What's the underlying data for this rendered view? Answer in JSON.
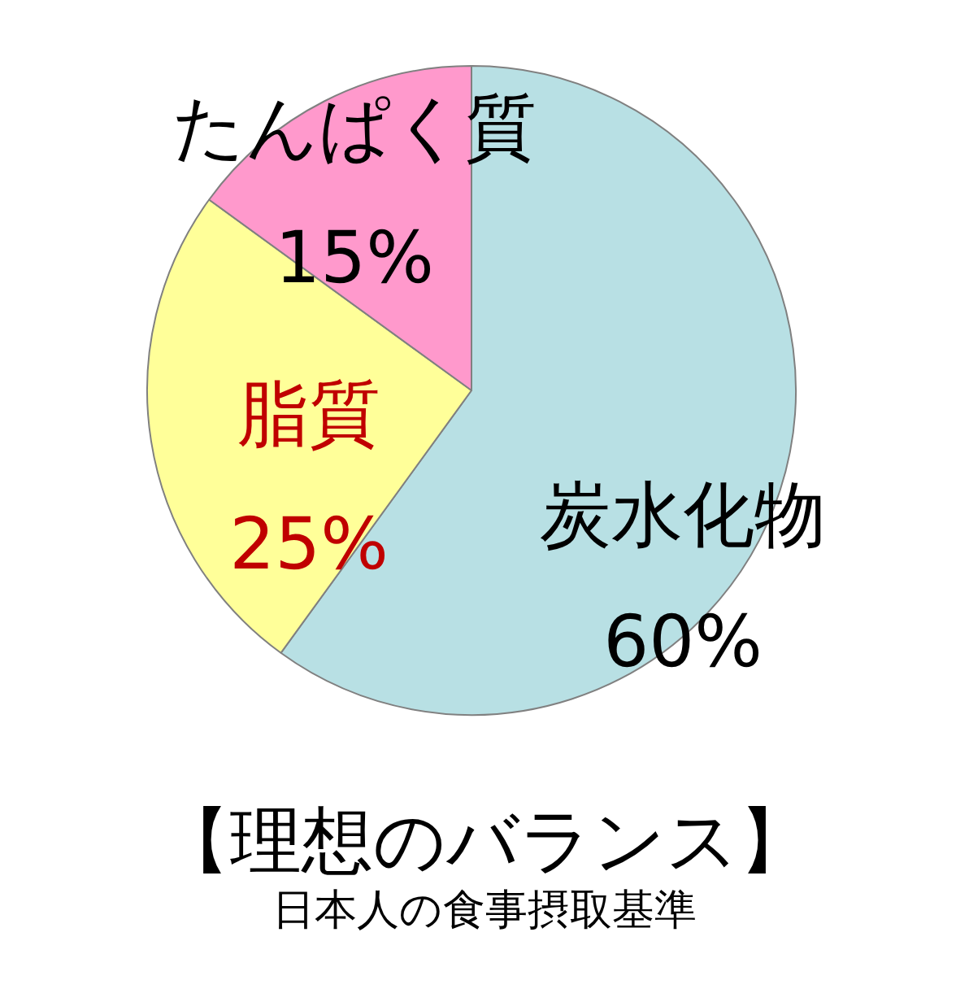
{
  "chart_data": {
    "type": "pie",
    "title": "【理想のバランス】",
    "subtitle": "日本人の食事摂取基準",
    "categories": [
      "炭水化物",
      "脂質",
      "たんぱく質"
    ],
    "values": [
      60,
      25,
      15
    ],
    "colors": [
      "#b8e0e4",
      "#ffff99",
      "#ff99cc"
    ],
    "value_labels": [
      "60%",
      "25%",
      "15%"
    ],
    "legend": false
  }
}
